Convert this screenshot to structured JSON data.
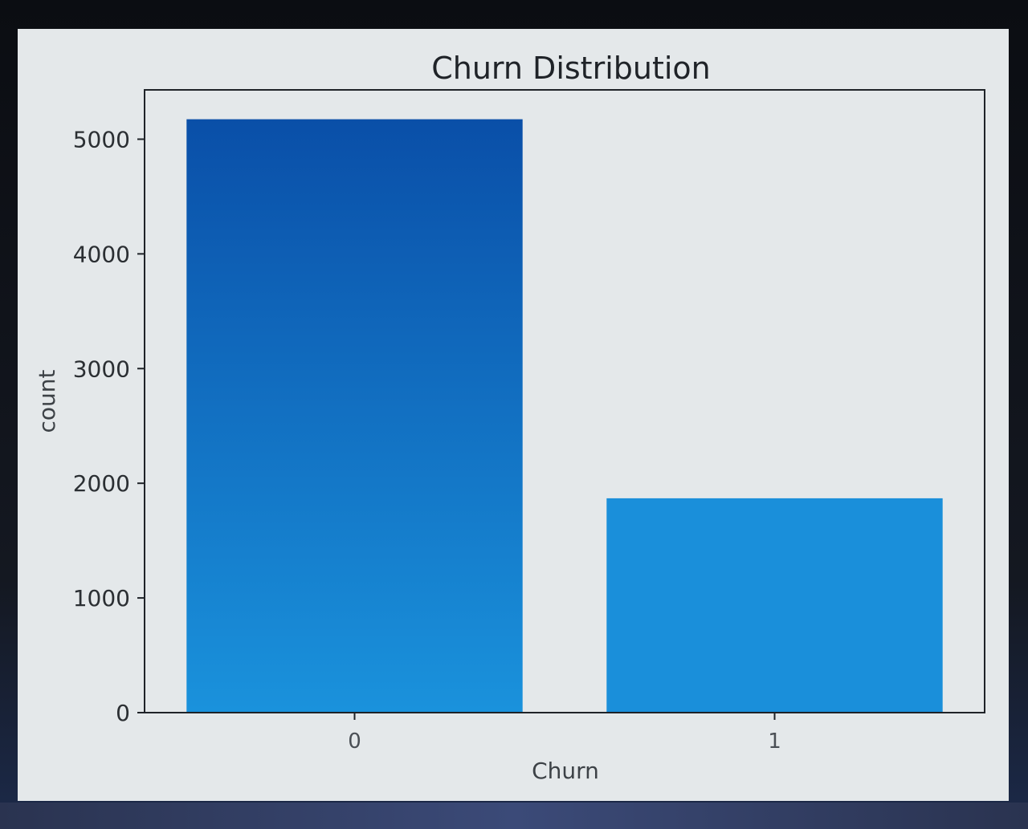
{
  "chart_data": {
    "type": "bar",
    "title": "Churn Distribution",
    "xlabel": "Churn",
    "ylabel": "count",
    "categories": [
      "0",
      "1"
    ],
    "values": [
      5174,
      1869
    ],
    "yticks": [
      "0",
      "1000",
      "2000",
      "3000",
      "4000",
      "5000"
    ],
    "ylim": [
      0,
      5430
    ],
    "grid": false,
    "colors": {
      "bar_top": "#0a4fa8",
      "bar_bottom": "#1a92dc",
      "bar2": "#1a8fda",
      "axes": "#1f2328"
    }
  }
}
